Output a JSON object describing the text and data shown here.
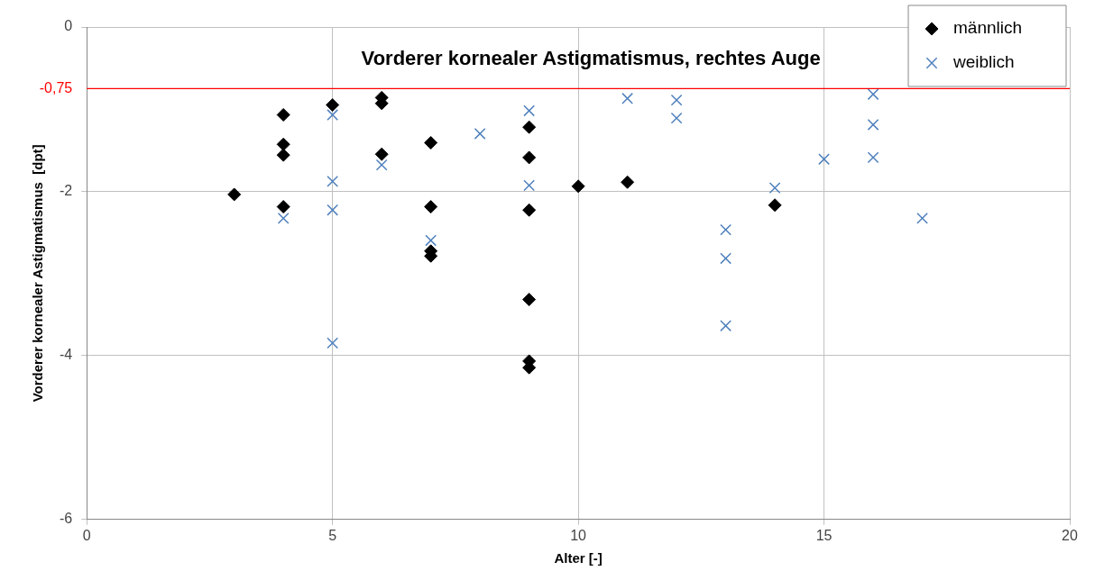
{
  "chart_data": {
    "type": "scatter",
    "title": "Vorderer kornealer Astigmatismus, rechtes Auge",
    "xlabel": "Alter [-]",
    "ylabel": "Vorderer kornealer Astigmatismus  [dpt]",
    "xlim": [
      0,
      20
    ],
    "xticks": [
      0,
      5,
      10,
      15,
      20
    ],
    "ylim": [
      -6,
      0
    ],
    "yticks": [
      -6,
      -4,
      -2,
      0
    ],
    "grid": true,
    "legend": "top right",
    "ref_lines": [
      {
        "axis": "y",
        "value": -0.75,
        "label": "-0,75",
        "color": "#ff0000"
      }
    ],
    "series": [
      {
        "name": "männlich",
        "color": "#000000",
        "marker": "diamond",
        "x": [
          3,
          4,
          4,
          4,
          4,
          5,
          6,
          6,
          6,
          7,
          7,
          7,
          7,
          9,
          9,
          9,
          9,
          9,
          9,
          10,
          11,
          14
        ],
        "values": [
          -2.04,
          -1.07,
          -1.43,
          -1.56,
          -2.19,
          -0.95,
          -0.86,
          -0.93,
          -1.55,
          -1.41,
          -2.19,
          -2.73,
          -2.79,
          -1.22,
          -1.59,
          -2.23,
          -3.32,
          -4.07,
          -4.15,
          -1.94,
          -1.89,
          -2.17
        ]
      },
      {
        "name": "weiblich",
        "color": "#4f81bd",
        "marker": "cross",
        "x": [
          4,
          5,
          5,
          5,
          5,
          6,
          7,
          8,
          9,
          9,
          11,
          12,
          12,
          13,
          13,
          13,
          14,
          15,
          16,
          16,
          16,
          17
        ],
        "values": [
          -2.33,
          -1.07,
          -1.88,
          -2.23,
          -3.85,
          -1.68,
          -2.6,
          -1.3,
          -1.02,
          -1.93,
          -0.87,
          -0.89,
          -1.11,
          -2.47,
          -2.82,
          -3.64,
          -1.96,
          -1.61,
          -0.82,
          -1.19,
          -1.59,
          -2.33
        ]
      }
    ]
  }
}
